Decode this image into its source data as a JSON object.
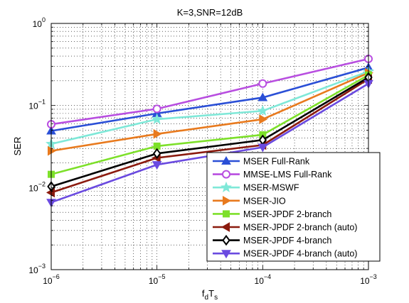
{
  "chart_data": {
    "type": "line",
    "title": "K=3,SNR=12dB",
    "xlabel": {
      "main": "f",
      "sub1": "d",
      "mid": "T",
      "sub2": "s"
    },
    "ylabel": "SER",
    "xscale": "log",
    "yscale": "log",
    "xlim": [
      1e-06,
      0.001
    ],
    "ylim": [
      0.001,
      1
    ],
    "grid": true,
    "legend_position": "bottom-right",
    "x": [
      1e-06,
      1e-05,
      0.0001,
      0.001
    ],
    "x_tick_labels": [
      {
        "base": "10",
        "exp": "−6"
      },
      {
        "base": "10",
        "exp": "−5"
      },
      {
        "base": "10",
        "exp": "−4"
      },
      {
        "base": "10",
        "exp": "−3"
      }
    ],
    "y_tick_labels": [
      {
        "base": "10",
        "exp": "−3"
      },
      {
        "base": "10",
        "exp": "−2"
      },
      {
        "base": "10",
        "exp": "−1"
      },
      {
        "base": "10",
        "exp": "0"
      }
    ],
    "series": [
      {
        "name": "MSER Full-Rank",
        "color": "#2a4fd6",
        "marker": "triangle-up",
        "values": [
          0.049,
          0.08,
          0.125,
          0.29
        ]
      },
      {
        "name": "MMSE-LMS Full-Rank",
        "color": "#b84ee0",
        "marker": "circle",
        "values": [
          0.059,
          0.091,
          0.185,
          0.37
        ]
      },
      {
        "name": "MSER-MSWF",
        "color": "#7fe8d8",
        "marker": "star",
        "values": [
          0.034,
          0.068,
          0.086,
          0.26
        ]
      },
      {
        "name": "MSER-JIO",
        "color": "#e87a1e",
        "marker": "triangle-right",
        "values": [
          0.028,
          0.045,
          0.068,
          0.25
        ]
      },
      {
        "name": "MSER-JPDF 2-branch",
        "color": "#7de02a",
        "marker": "square",
        "values": [
          0.0145,
          0.032,
          0.044,
          0.235
        ]
      },
      {
        "name": "MSER-JPDF 2-branch (auto)",
        "color": "#8b1a0e",
        "marker": "triangle-left",
        "values": [
          0.0087,
          0.023,
          0.033,
          0.21
        ]
      },
      {
        "name": "MSER-JPDF 4-branch",
        "color": "#000000",
        "marker": "diamond",
        "values": [
          0.0103,
          0.026,
          0.038,
          0.22
        ]
      },
      {
        "name": "MSER-JPDF 4-branch (auto)",
        "color": "#6a4ae0",
        "marker": "triangle-down",
        "values": [
          0.0066,
          0.019,
          0.031,
          0.185
        ]
      }
    ]
  }
}
